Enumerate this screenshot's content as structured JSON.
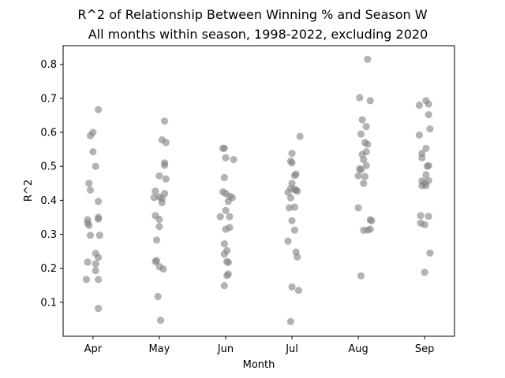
{
  "chart_data": {
    "type": "scatter",
    "title": "R^2 of Relationship Between Winning % and Season W",
    "subtitle": "All months within season, 1998-2022, excluding 2020",
    "xlabel": "Month",
    "ylabel": "R^2",
    "categories": [
      "Apr",
      "May",
      "Jun",
      "Jul",
      "Aug",
      "Sep"
    ],
    "ylim": [
      0.0,
      0.855
    ],
    "yticks": [
      0.1,
      0.2,
      0.3,
      0.4,
      0.5,
      0.6,
      0.7,
      0.8
    ],
    "ytick_labels": [
      "0.1",
      "0.2",
      "0.3",
      "0.4",
      "0.5",
      "0.6",
      "0.7",
      "0.8"
    ],
    "grid": false,
    "marker_color": "#808080",
    "series": [
      {
        "category": "Apr",
        "points": [
          {
            "x": 0.08,
            "y": 0.667
          },
          {
            "x": -0.04,
            "y": 0.59
          },
          {
            "x": 0.0,
            "y": 0.6
          },
          {
            "x": 0.0,
            "y": 0.543
          },
          {
            "x": 0.04,
            "y": 0.5
          },
          {
            "x": -0.06,
            "y": 0.45
          },
          {
            "x": -0.04,
            "y": 0.43
          },
          {
            "x": 0.08,
            "y": 0.397
          },
          {
            "x": 0.08,
            "y": 0.35
          },
          {
            "x": 0.08,
            "y": 0.345
          },
          {
            "x": -0.08,
            "y": 0.343
          },
          {
            "x": -0.08,
            "y": 0.333
          },
          {
            "x": -0.06,
            "y": 0.326
          },
          {
            "x": -0.04,
            "y": 0.297
          },
          {
            "x": 0.1,
            "y": 0.297
          },
          {
            "x": 0.04,
            "y": 0.244
          },
          {
            "x": 0.08,
            "y": 0.232
          },
          {
            "x": -0.08,
            "y": 0.218
          },
          {
            "x": 0.04,
            "y": 0.213
          },
          {
            "x": 0.04,
            "y": 0.193
          },
          {
            "x": -0.1,
            "y": 0.167
          },
          {
            "x": 0.08,
            "y": 0.167
          },
          {
            "x": 0.08,
            "y": 0.082
          }
        ]
      },
      {
        "category": "May",
        "points": [
          {
            "x": 0.08,
            "y": 0.633
          },
          {
            "x": 0.04,
            "y": 0.578
          },
          {
            "x": 0.1,
            "y": 0.57
          },
          {
            "x": 0.08,
            "y": 0.51
          },
          {
            "x": 0.08,
            "y": 0.503
          },
          {
            "x": 0.0,
            "y": 0.472
          },
          {
            "x": 0.1,
            "y": 0.463
          },
          {
            "x": -0.06,
            "y": 0.427
          },
          {
            "x": 0.08,
            "y": 0.42
          },
          {
            "x": -0.08,
            "y": 0.408
          },
          {
            "x": 0.0,
            "y": 0.41
          },
          {
            "x": 0.04,
            "y": 0.405
          },
          {
            "x": 0.04,
            "y": 0.393
          },
          {
            "x": -0.06,
            "y": 0.355
          },
          {
            "x": 0.0,
            "y": 0.344
          },
          {
            "x": 0.0,
            "y": 0.323
          },
          {
            "x": -0.04,
            "y": 0.283
          },
          {
            "x": -0.04,
            "y": 0.223
          },
          {
            "x": -0.06,
            "y": 0.22
          },
          {
            "x": 0.0,
            "y": 0.205
          },
          {
            "x": 0.06,
            "y": 0.198
          },
          {
            "x": -0.02,
            "y": 0.117
          },
          {
            "x": 0.02,
            "y": 0.047
          }
        ]
      },
      {
        "category": "Jun",
        "points": [
          {
            "x": -0.04,
            "y": 0.553
          },
          {
            "x": -0.02,
            "y": 0.553
          },
          {
            "x": 0.0,
            "y": 0.525
          },
          {
            "x": 0.12,
            "y": 0.52
          },
          {
            "x": -0.02,
            "y": 0.467
          },
          {
            "x": -0.04,
            "y": 0.425
          },
          {
            "x": 0.0,
            "y": 0.42
          },
          {
            "x": 0.06,
            "y": 0.412
          },
          {
            "x": 0.1,
            "y": 0.408
          },
          {
            "x": 0.04,
            "y": 0.397
          },
          {
            "x": 0.0,
            "y": 0.37
          },
          {
            "x": -0.08,
            "y": 0.352
          },
          {
            "x": 0.06,
            "y": 0.352
          },
          {
            "x": 0.06,
            "y": 0.32
          },
          {
            "x": 0.0,
            "y": 0.315
          },
          {
            "x": -0.02,
            "y": 0.272
          },
          {
            "x": 0.02,
            "y": 0.252
          },
          {
            "x": -0.02,
            "y": 0.242
          },
          {
            "x": 0.02,
            "y": 0.22
          },
          {
            "x": 0.04,
            "y": 0.217
          },
          {
            "x": 0.04,
            "y": 0.183
          },
          {
            "x": 0.02,
            "y": 0.179
          },
          {
            "x": -0.02,
            "y": 0.149
          }
        ]
      },
      {
        "category": "Jul",
        "points": [
          {
            "x": 0.12,
            "y": 0.588
          },
          {
            "x": 0.0,
            "y": 0.538
          },
          {
            "x": -0.02,
            "y": 0.515
          },
          {
            "x": 0.0,
            "y": 0.51
          },
          {
            "x": 0.06,
            "y": 0.477
          },
          {
            "x": 0.04,
            "y": 0.473
          },
          {
            "x": 0.0,
            "y": 0.45
          },
          {
            "x": -0.02,
            "y": 0.435
          },
          {
            "x": 0.04,
            "y": 0.432
          },
          {
            "x": 0.06,
            "y": 0.43
          },
          {
            "x": 0.08,
            "y": 0.427
          },
          {
            "x": -0.06,
            "y": 0.423
          },
          {
            "x": -0.02,
            "y": 0.407
          },
          {
            "x": -0.04,
            "y": 0.378
          },
          {
            "x": 0.04,
            "y": 0.38
          },
          {
            "x": 0.0,
            "y": 0.34
          },
          {
            "x": 0.04,
            "y": 0.312
          },
          {
            "x": -0.06,
            "y": 0.28
          },
          {
            "x": 0.06,
            "y": 0.248
          },
          {
            "x": 0.08,
            "y": 0.233
          },
          {
            "x": 0.0,
            "y": 0.145
          },
          {
            "x": 0.1,
            "y": 0.135
          },
          {
            "x": -0.02,
            "y": 0.043
          }
        ]
      },
      {
        "category": "Aug",
        "points": [
          {
            "x": 0.14,
            "y": 0.815
          },
          {
            "x": 0.02,
            "y": 0.702
          },
          {
            "x": 0.18,
            "y": 0.693
          },
          {
            "x": 0.06,
            "y": 0.637
          },
          {
            "x": 0.12,
            "y": 0.617
          },
          {
            "x": 0.04,
            "y": 0.595
          },
          {
            "x": 0.1,
            "y": 0.57
          },
          {
            "x": 0.14,
            "y": 0.565
          },
          {
            "x": 0.12,
            "y": 0.543
          },
          {
            "x": 0.06,
            "y": 0.535
          },
          {
            "x": 0.08,
            "y": 0.52
          },
          {
            "x": 0.12,
            "y": 0.502
          },
          {
            "x": 0.02,
            "y": 0.493
          },
          {
            "x": 0.04,
            "y": 0.49
          },
          {
            "x": 0.0,
            "y": 0.472
          },
          {
            "x": 0.1,
            "y": 0.47
          },
          {
            "x": 0.08,
            "y": 0.45
          },
          {
            "x": 0.0,
            "y": 0.378
          },
          {
            "x": 0.18,
            "y": 0.343
          },
          {
            "x": 0.2,
            "y": 0.34
          },
          {
            "x": 0.08,
            "y": 0.312
          },
          {
            "x": 0.14,
            "y": 0.312
          },
          {
            "x": 0.18,
            "y": 0.315
          },
          {
            "x": 0.04,
            "y": 0.178
          }
        ]
      },
      {
        "category": "Sep",
        "points": [
          {
            "x": 0.02,
            "y": 0.693
          },
          {
            "x": -0.08,
            "y": 0.68
          },
          {
            "x": 0.06,
            "y": 0.683
          },
          {
            "x": 0.06,
            "y": 0.652
          },
          {
            "x": 0.08,
            "y": 0.61
          },
          {
            "x": -0.08,
            "y": 0.592
          },
          {
            "x": 0.02,
            "y": 0.553
          },
          {
            "x": -0.04,
            "y": 0.538
          },
          {
            "x": -0.04,
            "y": 0.525
          },
          {
            "x": 0.04,
            "y": 0.5
          },
          {
            "x": 0.06,
            "y": 0.502
          },
          {
            "x": 0.02,
            "y": 0.475
          },
          {
            "x": -0.04,
            "y": 0.457
          },
          {
            "x": 0.06,
            "y": 0.458
          },
          {
            "x": 0.0,
            "y": 0.45
          },
          {
            "x": -0.04,
            "y": 0.443
          },
          {
            "x": 0.02,
            "y": 0.443
          },
          {
            "x": -0.06,
            "y": 0.355
          },
          {
            "x": 0.06,
            "y": 0.353
          },
          {
            "x": -0.06,
            "y": 0.333
          },
          {
            "x": 0.0,
            "y": 0.328
          },
          {
            "x": 0.08,
            "y": 0.245
          },
          {
            "x": 0.0,
            "y": 0.188
          }
        ]
      }
    ]
  }
}
